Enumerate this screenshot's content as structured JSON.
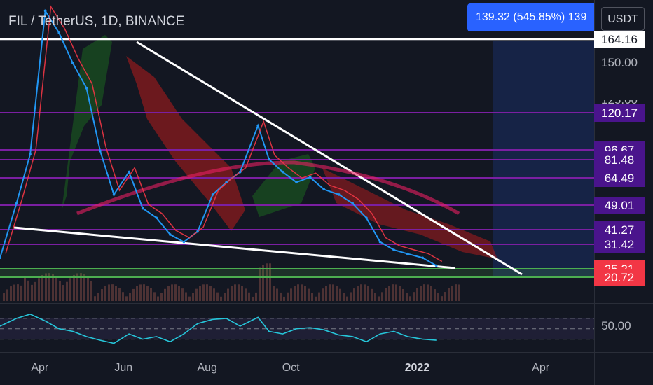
{
  "header": {
    "title": "FIL / TetherUS, 1D, BINANCE",
    "measure_label": "139.32 (545.85%) 139",
    "currency": "USDT"
  },
  "colors": {
    "background": "#131722",
    "purple_level": "#7b1fa2",
    "white_line": "#ffffff",
    "green_zone": "#4caf50",
    "rsi_line": "#26c6da",
    "price_line": "#2196f3",
    "baseline_line": "#f23645",
    "cloud_bullish": "#1b5e20",
    "cloud_bearish": "#b71c1c",
    "volume": "#5d3a3a",
    "projection": "#1e3a8a",
    "label_red": "#f23645"
  },
  "axis": {
    "price_ticks": [
      "150.00",
      "125.00"
    ],
    "rsi_tick": "50.00",
    "x_ticks": [
      {
        "label": "Apr",
        "bold": false
      },
      {
        "label": "Jun",
        "bold": false
      },
      {
        "label": "Aug",
        "bold": false
      },
      {
        "label": "Oct",
        "bold": false
      },
      {
        "label": "2022",
        "bold": true
      },
      {
        "label": "Apr",
        "bold": false
      }
    ]
  },
  "chart_data": {
    "type": "line",
    "pair": "FIL / TetherUS",
    "timeframe": "1D",
    "exchange": "BINANCE",
    "horizontal_levels": [
      {
        "value": 164.16,
        "label": "164.16",
        "style": "white"
      },
      {
        "value": 120.17,
        "label": "120.17",
        "style": "purple"
      },
      {
        "value": 96.67,
        "label": "96.67",
        "style": "purple"
      },
      {
        "value": 81.48,
        "label": "81.48",
        "style": "purple"
      },
      {
        "value": 64.49,
        "label": "64.49",
        "style": "purple"
      },
      {
        "value": 49.01,
        "label": "49.01",
        "style": "purple"
      },
      {
        "value": 41.27,
        "label": "41.27",
        "style": "purple"
      },
      {
        "value": 31.42,
        "label": "31.42",
        "style": "purple"
      },
      {
        "value": 25.21,
        "label": "25.21",
        "style": "red"
      },
      {
        "value": 20.72,
        "label": "20.72",
        "style": "red"
      }
    ],
    "series": [
      {
        "name": "",
        "x": [
          "2021-03-03",
          "2021-03-15",
          "2021-03-25",
          "2021-04-05",
          "2021-04-15",
          "2021-04-25",
          "2021-05-05",
          "2021-05-15",
          "2021-05-25",
          "2021-06-05",
          "2021-06-15",
          "2021-06-25",
          "2021-07-05",
          "2021-07-15",
          "2021-07-25",
          "2021-08-05",
          "2021-08-15",
          "2021-08-25",
          "2021-09-07",
          "2021-09-15",
          "2021-09-25",
          "2021-10-05",
          "2021-10-15",
          "2021-10-25",
          "2021-11-05",
          "2021-11-15",
          "2021-11-25",
          "2021-12-05",
          "2021-12-15",
          "2021-12-25",
          "2022-01-05",
          "2022-01-15"
        ],
        "values": [
          28,
          50,
          90,
          190,
          170,
          150,
          135,
          95,
          55,
          70,
          48,
          45,
          38,
          33,
          40,
          55,
          62,
          70,
          112,
          82,
          70,
          62,
          65,
          58,
          55,
          50,
          45,
          33,
          30,
          29,
          28,
          26
        ]
      }
    ],
    "rsi": {
      "tick": 50,
      "values": [
        55,
        70,
        78,
        65,
        50,
        45,
        35,
        28,
        22,
        40,
        30,
        35,
        25,
        40,
        60,
        68,
        70,
        55,
        72,
        45,
        40,
        50,
        52,
        48,
        38,
        35,
        25,
        40,
        45,
        35,
        30,
        28
      ]
    }
  }
}
